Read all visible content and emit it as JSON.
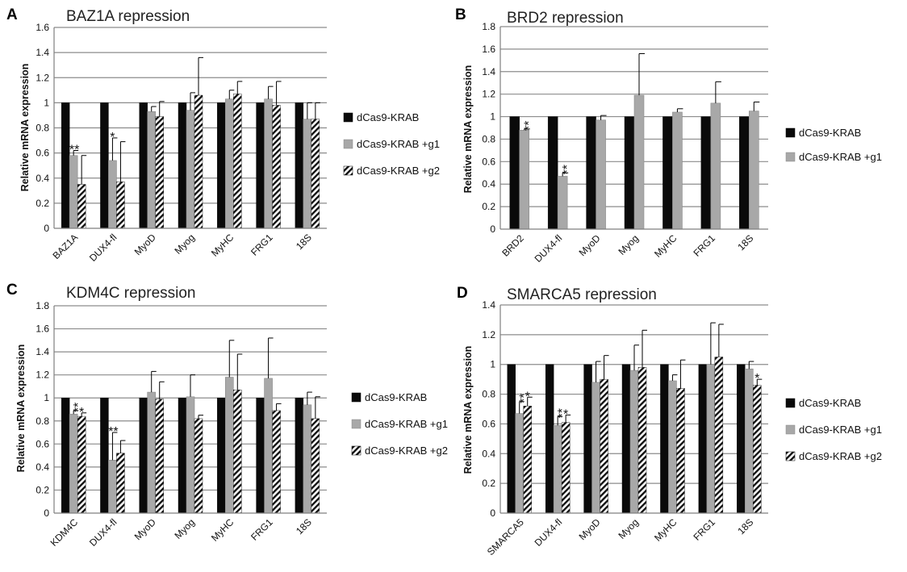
{
  "colors": {
    "black_bar": "#0a0a0a",
    "grey_bar": "#a8a8a8",
    "hatch_bar": "#111111",
    "gridline": "#8c8c8c",
    "axis": "#7f7f7f"
  },
  "chart_data": [
    {
      "panel": "A",
      "type": "bar",
      "title": "BAZ1A repression",
      "ylabel": "Relative mRNA expression",
      "ylim": [
        0,
        1.6
      ],
      "yticks": [
        "0",
        "0.2",
        "0.4",
        "0.6",
        "0.8",
        "1",
        "1.2",
        "1.4",
        "1.6"
      ],
      "grid": true,
      "legend_position": "right",
      "categories": [
        "BAZ1A",
        "DUX4-fl",
        "MyoD",
        "Myog",
        "MyHC",
        "FRG1",
        "18S"
      ],
      "series": [
        {
          "name": "dCas9-KRAB",
          "style": "black",
          "values": [
            1,
            1,
            1,
            1,
            1,
            1,
            1
          ],
          "errors": [
            0,
            0,
            0,
            0,
            0,
            0,
            0
          ]
        },
        {
          "name": "dCas9-KRAB +g1",
          "style": "grey",
          "values": [
            0.58,
            0.54,
            0.93,
            0.94,
            1.03,
            1.03,
            0.87
          ],
          "errors": [
            0.04,
            0.18,
            0.04,
            0.14,
            0.07,
            0.1,
            0.13
          ]
        },
        {
          "name": "dCas9-KRAB +g2",
          "style": "hatch",
          "values": [
            0.35,
            0.37,
            0.89,
            1.06,
            1.07,
            0.98,
            0.87
          ],
          "errors": [
            0.23,
            0.32,
            0.12,
            0.3,
            0.1,
            0.19,
            0.13
          ]
        }
      ],
      "annotations": [
        {
          "text": "**",
          "category": 0,
          "series": 1
        },
        {
          "text": "*",
          "category": 1,
          "series": 1
        }
      ]
    },
    {
      "panel": "B",
      "type": "bar",
      "title": "BRD2 repression",
      "ylabel": "Relative mRNA expression",
      "ylim": [
        0,
        1.8
      ],
      "yticks": [
        "0",
        "0.2",
        "0.4",
        "0.6",
        "0.8",
        "1",
        "1.2",
        "1.4",
        "1.6",
        "1.8"
      ],
      "grid": true,
      "legend_position": "right",
      "categories": [
        "BRD2",
        "DUX4-fl",
        "MyoD",
        "Myog",
        "MyHC",
        "FRG1",
        "18S"
      ],
      "series": [
        {
          "name": "dCas9-KRAB",
          "style": "black",
          "values": [
            1,
            1,
            1,
            1,
            1,
            1,
            1
          ],
          "errors": [
            0,
            0,
            0,
            0,
            0,
            0,
            0
          ]
        },
        {
          "name": "dCas9-KRAB +g1",
          "style": "grey",
          "values": [
            0.88,
            0.47,
            0.97,
            1.19,
            1.04,
            1.12,
            1.05
          ],
          "errors": [
            0.01,
            0.03,
            0.04,
            0.37,
            0.03,
            0.19,
            0.08
          ]
        }
      ],
      "annotations": [
        {
          "text": "**",
          "category": 0,
          "series": 1,
          "stacked": true
        },
        {
          "text": "**",
          "category": 1,
          "series": 1,
          "stacked": true
        }
      ]
    },
    {
      "panel": "C",
      "type": "bar",
      "title": "KDM4C repression",
      "ylabel": "Relative mRNA expression",
      "ylim": [
        0,
        1.8
      ],
      "yticks": [
        "0",
        "0.2",
        "0.4",
        "0.6",
        "0.8",
        "1",
        "1.2",
        "1.4",
        "1.6",
        "1.8"
      ],
      "grid": true,
      "legend_position": "right",
      "categories": [
        "KDM4C",
        "DUX4-fl",
        "MyoD",
        "Myog",
        "MyHC",
        "FRG1",
        "18S"
      ],
      "series": [
        {
          "name": "dCas9-KRAB",
          "style": "black",
          "values": [
            1,
            1,
            1,
            1,
            1,
            1,
            1
          ],
          "errors": [
            0,
            0,
            0,
            0,
            0,
            0,
            0
          ]
        },
        {
          "name": "dCas9-KRAB +g1",
          "style": "grey",
          "values": [
            0.86,
            0.46,
            1.05,
            1.01,
            1.18,
            1.17,
            0.94
          ],
          "errors": [
            0.03,
            0.24,
            0.18,
            0.19,
            0.32,
            0.35,
            0.11
          ]
        },
        {
          "name": "dCas9-KRAB +g2",
          "style": "hatch",
          "values": [
            0.84,
            0.52,
            0.99,
            0.82,
            1.07,
            0.89,
            0.82
          ],
          "errors": [
            0.03,
            0.11,
            0.15,
            0.03,
            0.31,
            0.06,
            0.19
          ]
        }
      ],
      "annotations": [
        {
          "text": "**",
          "category": 0,
          "series": 1,
          "stacked": true
        },
        {
          "text": "*",
          "category": 0,
          "series": 2
        },
        {
          "text": "**",
          "category": 1,
          "series": 1
        }
      ]
    },
    {
      "panel": "D",
      "type": "bar",
      "title": "SMARCA5 repression",
      "ylabel": "Relative mRNA expression",
      "ylim": [
        0,
        1.4
      ],
      "yticks": [
        "0",
        "0.2",
        "0.4",
        "0.6",
        "0.8",
        "1",
        "1.2",
        "1.4"
      ],
      "grid": true,
      "legend_position": "right",
      "categories": [
        "SMARCA5",
        "DUX4-fl",
        "MyoD",
        "Myog",
        "MyHC",
        "FRG1",
        "18S"
      ],
      "series": [
        {
          "name": "dCas9-KRAB",
          "style": "black",
          "values": [
            1,
            1,
            1,
            1,
            1,
            1,
            1
          ],
          "errors": [
            0,
            0,
            0,
            0,
            0,
            0,
            0
          ]
        },
        {
          "name": "dCas9-KRAB +g1",
          "style": "grey",
          "values": [
            0.67,
            0.59,
            0.88,
            0.96,
            0.89,
            1.0,
            0.97
          ],
          "errors": [
            0.08,
            0.06,
            0.14,
            0.17,
            0.04,
            0.28,
            0.05
          ]
        },
        {
          "name": "dCas9-KRAB +g2",
          "style": "hatch",
          "values": [
            0.72,
            0.61,
            0.9,
            0.98,
            0.84,
            1.05,
            0.86
          ],
          "errors": [
            0.06,
            0.05,
            0.16,
            0.25,
            0.19,
            0.22,
            0.04
          ]
        }
      ],
      "annotations": [
        {
          "text": "**",
          "category": 0,
          "series": 1,
          "stacked": true
        },
        {
          "text": "*",
          "category": 0,
          "series": 2
        },
        {
          "text": "**",
          "category": 1,
          "series": 1,
          "stacked": true
        },
        {
          "text": "*",
          "category": 1,
          "series": 2
        },
        {
          "text": "*",
          "category": 6,
          "series": 2
        }
      ]
    }
  ]
}
